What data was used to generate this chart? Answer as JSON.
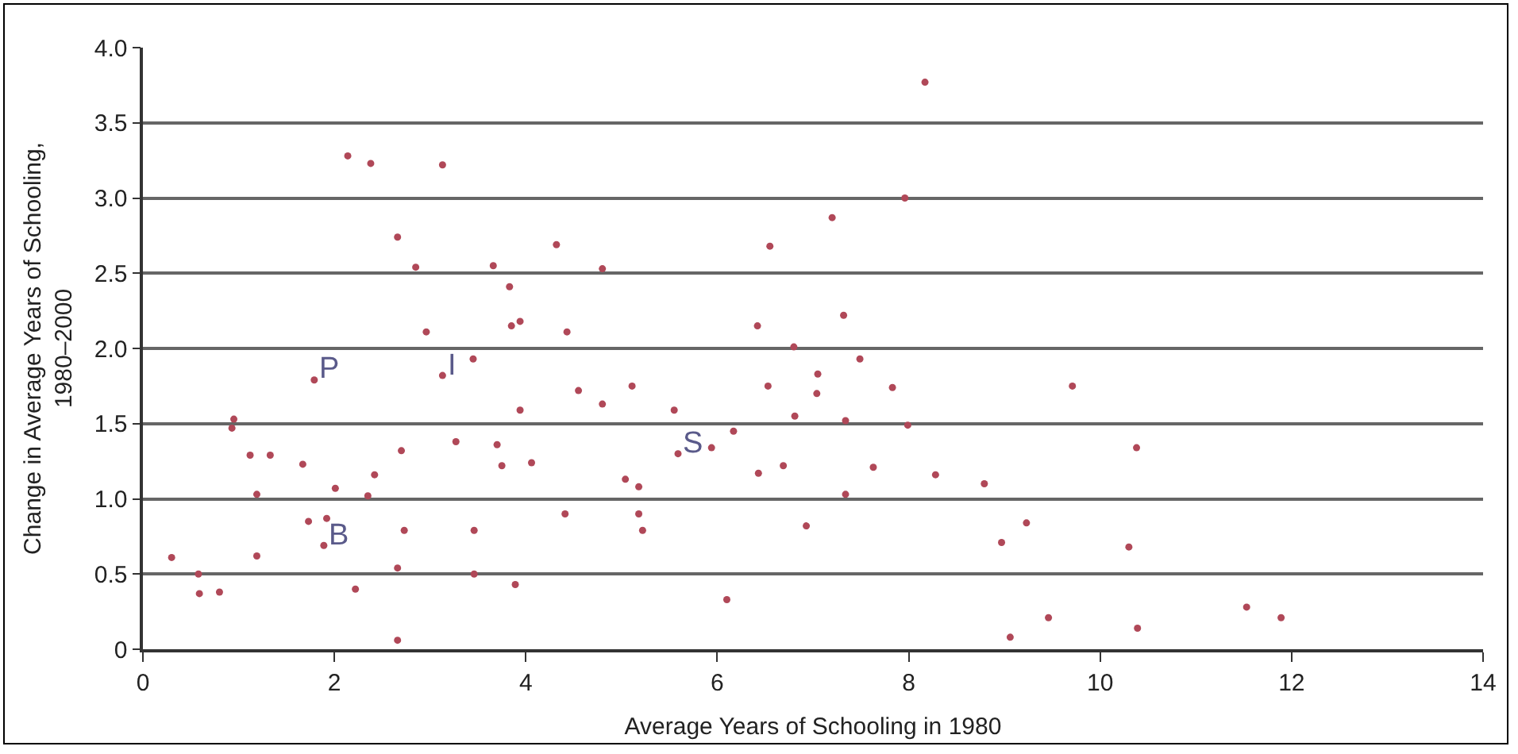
{
  "chart_data": {
    "type": "scatter",
    "xlabel": "Average Years of Schooling in 1980",
    "ylabel": "Change in Average Years of Schooling,\n1980–2000",
    "xlim": [
      0,
      14
    ],
    "xticks": [
      0,
      2,
      4,
      6,
      8,
      10,
      12,
      14
    ],
    "ylim": [
      0,
      4
    ],
    "yticks": [
      0,
      0.5,
      {
        "value": 1,
        "label": "1.0"
      },
      1.5,
      {
        "value": 2,
        "label": "2.0"
      },
      2.5,
      {
        "value": 3,
        "label": "3.0"
      },
      3.5,
      {
        "value": 4,
        "label": "4.0"
      }
    ],
    "grid": "y",
    "marker": "circle",
    "series": [
      {
        "color": "#b04858",
        "x": [
          2.14,
          2.38,
          3.13,
          2.66,
          4.32,
          2.85,
          3.66,
          3.83,
          2.96,
          3.85,
          3.94,
          4.43,
          1.79,
          3.13,
          3.45,
          4.55,
          3.94,
          0.95,
          0.93,
          1.12,
          1.33,
          1.67,
          2.7,
          3.27,
          3.7,
          3.75,
          4.06,
          2.42,
          1.19,
          2.01,
          2.35,
          4.41,
          1.73,
          1.92,
          1.89,
          2.73,
          3.46,
          0.3,
          1.19,
          2.66,
          0.58,
          3.46,
          0.59,
          0.8,
          2.22,
          3.89,
          2.66,
          8.17,
          7.96,
          7.2,
          6.55,
          4.8,
          6.42,
          7.32,
          6.8,
          7.49,
          5.11,
          6.53,
          7.05,
          7.04,
          7.83,
          4.8,
          5.55,
          6.17,
          5.94,
          5.59,
          6.43,
          6.69,
          7.63,
          8.28,
          8.79,
          5.04,
          5.18,
          7.34,
          6.81,
          7.34,
          7.99,
          5.18,
          5.22,
          6.93,
          9.23,
          8.97,
          6.1,
          9.06,
          10.38,
          10.3,
          9.46,
          11.53,
          11.89,
          10.39,
          9.71
        ],
        "values": [
          3.28,
          3.23,
          3.22,
          2.74,
          2.69,
          2.54,
          2.55,
          2.41,
          2.11,
          2.15,
          2.18,
          2.11,
          1.79,
          1.82,
          1.93,
          1.72,
          1.59,
          1.53,
          1.47,
          1.29,
          1.29,
          1.23,
          1.32,
          1.38,
          1.36,
          1.22,
          1.24,
          1.16,
          1.03,
          1.07,
          1.02,
          0.9,
          0.85,
          0.87,
          0.69,
          0.79,
          0.79,
          0.61,
          0.62,
          0.54,
          0.5,
          0.5,
          0.37,
          0.38,
          0.4,
          0.43,
          0.06,
          3.77,
          3.0,
          2.87,
          2.68,
          2.53,
          2.15,
          2.22,
          2.01,
          1.93,
          1.75,
          1.75,
          1.83,
          1.7,
          1.74,
          1.63,
          1.59,
          1.45,
          1.34,
          1.3,
          1.17,
          1.22,
          1.21,
          1.16,
          1.1,
          1.13,
          1.08,
          1.03,
          1.55,
          1.52,
          1.49,
          0.9,
          0.79,
          0.82,
          0.84,
          0.71,
          0.33,
          0.08,
          1.34,
          0.68,
          0.21,
          0.28,
          0.21,
          0.14,
          1.75
        ]
      }
    ],
    "annotations": [
      {
        "text": "P",
        "x": 1.79,
        "y": 1.79
      },
      {
        "text": "I",
        "x": 3.13,
        "y": 1.82
      },
      {
        "text": "B",
        "x": 1.89,
        "y": 0.69
      },
      {
        "text": "S",
        "x": 5.59,
        "y": 1.3
      }
    ]
  }
}
